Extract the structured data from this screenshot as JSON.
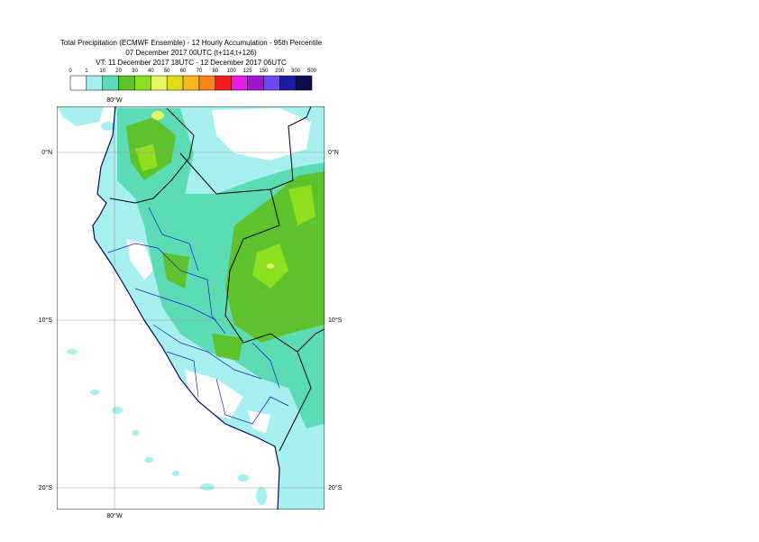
{
  "title": {
    "line1": "Total Precipitation (ECMWF Ensemble) - 12 Hourly Accumulation - 95th Percentile",
    "line2": "07 December 2017 00UTC (t+114,t+126)",
    "line3": "VT: 11 December 2017 18UTC - 12 December 2017 06UTC"
  },
  "legend": {
    "bounds": [
      0,
      1,
      10,
      20,
      30,
      40,
      50,
      60,
      70,
      80,
      100,
      125,
      150,
      200,
      300,
      500
    ],
    "colors": [
      "#ffffff",
      "#a6f0f0",
      "#5cdcb4",
      "#5ec22c",
      "#8ee01e",
      "#e4f864",
      "#e0dc1c",
      "#f6b81c",
      "#f8841c",
      "#f81c1c",
      "#e81ce8",
      "#a014d0",
      "#6c48f4",
      "#1c1ca0",
      "#0c0c50"
    ]
  },
  "map": {
    "lon_label": "80°W",
    "lat_labels": [
      "0°N",
      "10°S",
      "20°S"
    ]
  }
}
